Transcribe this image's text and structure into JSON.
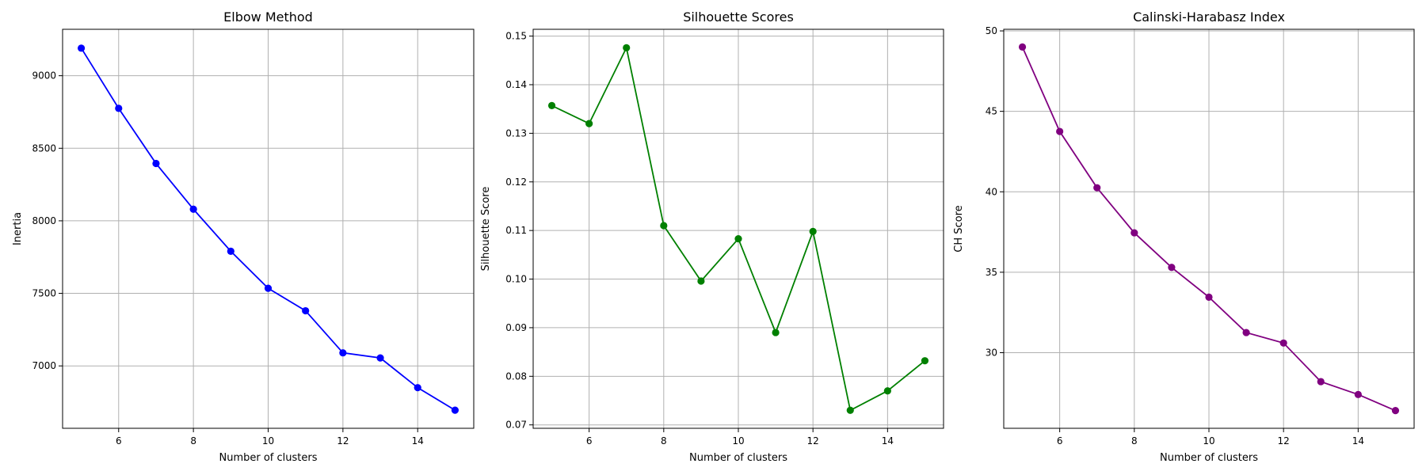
{
  "chart_data": [
    {
      "type": "line",
      "title": "Elbow Method",
      "xlabel": "Number of clusters",
      "ylabel": "Inertia",
      "x": [
        5,
        6,
        7,
        8,
        9,
        10,
        11,
        12,
        13,
        14,
        15
      ],
      "series": [
        {
          "values": [
            9190,
            8775,
            8395,
            8080,
            7790,
            7535,
            7380,
            7090,
            7055,
            6850,
            6695
          ],
          "color": "#0000ff"
        }
      ],
      "xticks": [
        6,
        8,
        10,
        12,
        14
      ],
      "yticks": [
        7000,
        7500,
        8000,
        8500,
        9000
      ],
      "xlim": [
        4.5,
        15.5
      ],
      "ylim": [
        6570,
        9320
      ],
      "grid": true
    },
    {
      "type": "line",
      "title": "Silhouette Scores",
      "xlabel": "Number of clusters",
      "ylabel": "Silhouette Score",
      "x": [
        5,
        6,
        7,
        8,
        9,
        10,
        11,
        12,
        13,
        14,
        15
      ],
      "series": [
        {
          "values": [
            0.1357,
            0.132,
            0.1476,
            0.111,
            0.0996,
            0.1083,
            0.089,
            0.1098,
            0.073,
            0.077,
            0.0832
          ],
          "color": "#008000"
        }
      ],
      "xticks": [
        6,
        8,
        10,
        12,
        14
      ],
      "yticks": [
        0.07,
        0.08,
        0.09,
        0.1,
        0.11,
        0.12,
        0.13,
        0.14,
        0.15
      ],
      "yticklabels": [
        "0.07",
        "0.08",
        "0.09",
        "0.10",
        "0.11",
        "0.12",
        "0.13",
        "0.14",
        "0.15"
      ],
      "xlim": [
        4.5,
        15.5
      ],
      "ylim": [
        0.0693,
        0.1514
      ],
      "grid": true
    },
    {
      "type": "line",
      "title": "Calinski-Harabasz Index",
      "xlabel": "Number of clusters",
      "ylabel": "CH Score",
      "x": [
        5,
        6,
        7,
        8,
        9,
        10,
        11,
        12,
        13,
        14,
        15
      ],
      "series": [
        {
          "values": [
            49.0,
            43.75,
            40.25,
            37.45,
            35.3,
            33.45,
            31.25,
            30.6,
            28.2,
            27.4,
            26.4
          ],
          "color": "#800080"
        }
      ],
      "xticks": [
        6,
        8,
        10,
        12,
        14
      ],
      "yticks": [
        30,
        35,
        40,
        45,
        50
      ],
      "xlim": [
        4.5,
        15.5
      ],
      "ylim": [
        25.3,
        50.1
      ],
      "grid": true
    }
  ]
}
